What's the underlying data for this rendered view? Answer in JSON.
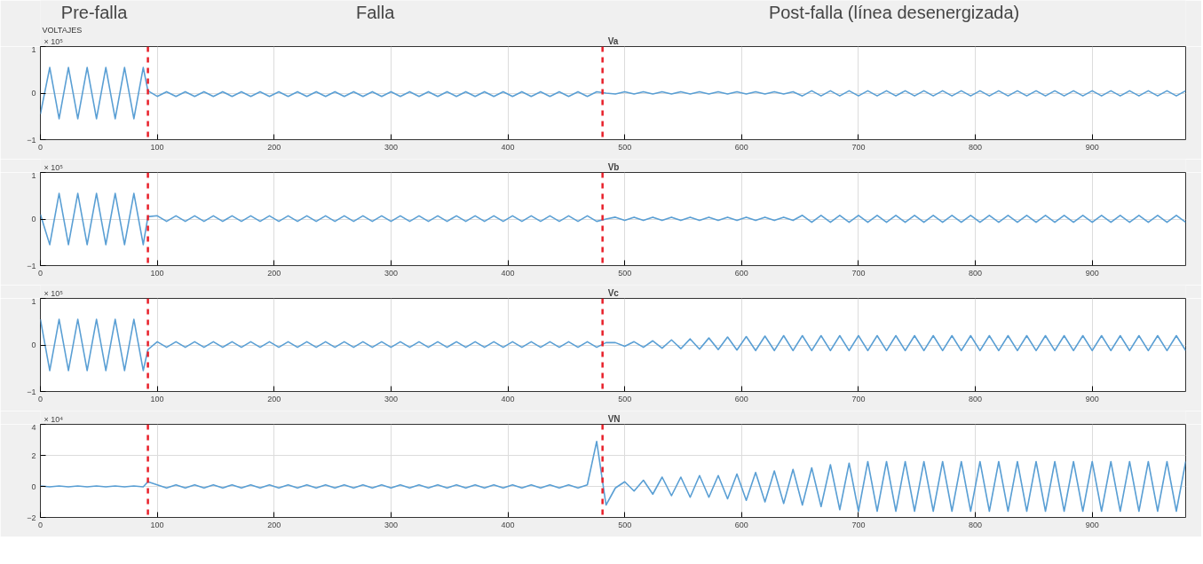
{
  "chart_data": [
    {
      "type": "line",
      "title": "Va",
      "ylabel": "× 10⁵",
      "annotations": [
        "VOLTAJES",
        "Pre-falla",
        "Falla",
        "Post-falla (línea desenergizada)"
      ],
      "x": [
        0,
        8,
        16,
        24,
        32,
        40,
        48,
        56,
        64,
        72,
        80,
        88,
        92,
        100,
        108,
        116,
        124,
        132,
        140,
        148,
        156,
        164,
        172,
        180,
        188,
        196,
        204,
        212,
        220,
        228,
        236,
        244,
        252,
        260,
        268,
        276,
        284,
        292,
        300,
        308,
        316,
        324,
        332,
        340,
        348,
        356,
        364,
        372,
        380,
        388,
        396,
        404,
        412,
        420,
        428,
        436,
        444,
        452,
        460,
        468,
        476,
        484,
        492,
        500,
        508,
        516,
        524,
        532,
        540,
        548,
        556,
        564,
        572,
        580,
        588,
        596,
        604,
        612,
        620,
        628,
        636,
        644,
        652,
        660,
        668,
        676,
        684,
        692,
        700,
        708,
        716,
        724,
        732,
        740,
        748,
        756,
        764,
        772,
        780,
        788,
        796,
        804,
        812,
        820,
        828,
        836,
        844,
        852,
        860,
        868,
        876,
        884,
        892,
        900,
        908,
        916,
        924,
        932,
        940,
        948,
        956,
        964,
        972,
        980
      ],
      "series": [
        {
          "color": "#5a9fd4",
          "values": [
            -0.45,
            0.55,
            -0.55,
            0.55,
            -0.55,
            0.55,
            -0.55,
            0.55,
            -0.55,
            0.55,
            -0.55,
            0.55,
            0.05,
            -0.07,
            0.03,
            -0.07,
            0.03,
            -0.07,
            0.03,
            -0.07,
            0.03,
            -0.07,
            0.03,
            -0.07,
            0.03,
            -0.07,
            0.03,
            -0.07,
            0.03,
            -0.07,
            0.03,
            -0.07,
            0.03,
            -0.07,
            0.03,
            -0.07,
            0.03,
            -0.07,
            0.03,
            -0.07,
            0.03,
            -0.07,
            0.03,
            -0.07,
            0.03,
            -0.07,
            0.03,
            -0.07,
            0.03,
            -0.07,
            0.03,
            -0.07,
            0.03,
            -0.07,
            0.03,
            -0.07,
            0.03,
            -0.07,
            0.03,
            -0.07,
            0.03,
            0.0,
            -0.02,
            0.03,
            -0.02,
            0.03,
            -0.02,
            0.03,
            -0.02,
            0.03,
            -0.02,
            0.03,
            -0.02,
            0.03,
            -0.02,
            0.03,
            -0.02,
            0.03,
            -0.02,
            0.03,
            -0.02,
            0.03,
            -0.06,
            0.05,
            -0.06,
            0.05,
            -0.06,
            0.05,
            -0.06,
            0.05,
            -0.06,
            0.05,
            -0.06,
            0.05,
            -0.06,
            0.05,
            -0.06,
            0.05,
            -0.06,
            0.05,
            -0.06,
            0.05,
            -0.06,
            0.05,
            -0.06,
            0.05,
            -0.06,
            0.05,
            -0.06,
            0.05,
            -0.06,
            0.05,
            -0.06,
            0.05,
            -0.06,
            0.05,
            -0.06,
            0.05,
            -0.06,
            0.05,
            -0.06,
            0.05,
            -0.06,
            0.05
          ]
        }
      ],
      "xlim": [
        0,
        980
      ],
      "ylim": [
        -1,
        1
      ],
      "xticks": [
        0,
        100,
        200,
        300,
        400,
        500,
        600,
        700,
        800,
        900
      ],
      "yticks": [
        -1,
        0,
        1
      ],
      "grid": true,
      "ref_lines": [
        {
          "axis": "x",
          "value": 92,
          "color": "#e8202a",
          "line_style": "dashed"
        },
        {
          "axis": "x",
          "value": 481,
          "color": "#e8202a",
          "line_style": "dashed"
        }
      ]
    },
    {
      "type": "line",
      "title": "Vb",
      "ylabel": "× 10⁵",
      "x": [
        0,
        8,
        16,
        24,
        32,
        40,
        48,
        56,
        64,
        72,
        80,
        88,
        92,
        100,
        108,
        116,
        124,
        132,
        140,
        148,
        156,
        164,
        172,
        180,
        188,
        196,
        204,
        212,
        220,
        228,
        236,
        244,
        252,
        260,
        268,
        276,
        284,
        292,
        300,
        308,
        316,
        324,
        332,
        340,
        348,
        356,
        364,
        372,
        380,
        388,
        396,
        404,
        412,
        420,
        428,
        436,
        444,
        452,
        460,
        468,
        476,
        484,
        492,
        500,
        508,
        516,
        524,
        532,
        540,
        548,
        556,
        564,
        572,
        580,
        588,
        596,
        604,
        612,
        620,
        628,
        636,
        644,
        652,
        660,
        668,
        676,
        684,
        692,
        700,
        708,
        716,
        724,
        732,
        740,
        748,
        756,
        764,
        772,
        780,
        788,
        796,
        804,
        812,
        820,
        828,
        836,
        844,
        852,
        860,
        868,
        876,
        884,
        892,
        900,
        908,
        916,
        924,
        932,
        940,
        948,
        956,
        964,
        972,
        980
      ],
      "series": [
        {
          "color": "#5a9fd4",
          "values": [
            0.1,
            -0.55,
            0.55,
            -0.55,
            0.55,
            -0.55,
            0.55,
            -0.55,
            0.55,
            -0.55,
            0.55,
            -0.55,
            0.05,
            0.07,
            -0.05,
            0.07,
            -0.05,
            0.07,
            -0.05,
            0.07,
            -0.05,
            0.07,
            -0.05,
            0.07,
            -0.05,
            0.07,
            -0.05,
            0.07,
            -0.05,
            0.07,
            -0.05,
            0.07,
            -0.05,
            0.07,
            -0.05,
            0.07,
            -0.05,
            0.07,
            -0.05,
            0.07,
            -0.05,
            0.07,
            -0.05,
            0.07,
            -0.05,
            0.07,
            -0.05,
            0.07,
            -0.05,
            0.07,
            -0.05,
            0.07,
            -0.05,
            0.07,
            -0.05,
            0.07,
            -0.05,
            0.07,
            -0.05,
            0.07,
            -0.05,
            0.0,
            0.04,
            -0.03,
            0.04,
            -0.03,
            0.04,
            -0.03,
            0.04,
            -0.03,
            0.04,
            -0.03,
            0.04,
            -0.03,
            0.04,
            -0.03,
            0.04,
            -0.03,
            0.04,
            -0.03,
            0.04,
            -0.03,
            0.08,
            -0.07,
            0.08,
            -0.07,
            0.08,
            -0.07,
            0.08,
            -0.07,
            0.08,
            -0.07,
            0.08,
            -0.07,
            0.08,
            -0.07,
            0.08,
            -0.07,
            0.08,
            -0.07,
            0.08,
            -0.07,
            0.08,
            -0.07,
            0.08,
            -0.07,
            0.08,
            -0.07,
            0.08,
            -0.07,
            0.08,
            -0.07,
            0.08,
            -0.07,
            0.08,
            -0.07,
            0.08,
            -0.07,
            0.08,
            -0.07,
            0.08,
            -0.07,
            0.08,
            -0.07
          ]
        }
      ],
      "xlim": [
        0,
        980
      ],
      "ylim": [
        -1,
        1
      ],
      "xticks": [
        0,
        100,
        200,
        300,
        400,
        500,
        600,
        700,
        800,
        900
      ],
      "yticks": [
        -1,
        0,
        1
      ],
      "grid": true,
      "ref_lines": [
        {
          "axis": "x",
          "value": 92,
          "color": "#e8202a",
          "line_style": "dashed"
        },
        {
          "axis": "x",
          "value": 481,
          "color": "#e8202a",
          "line_style": "dashed"
        }
      ]
    },
    {
      "type": "line",
      "title": "Vc",
      "ylabel": "× 10⁵",
      "x": [
        0,
        8,
        16,
        24,
        32,
        40,
        48,
        56,
        64,
        72,
        80,
        88,
        92,
        100,
        108,
        116,
        124,
        132,
        140,
        148,
        156,
        164,
        172,
        180,
        188,
        196,
        204,
        212,
        220,
        228,
        236,
        244,
        252,
        260,
        268,
        276,
        284,
        292,
        300,
        308,
        316,
        324,
        332,
        340,
        348,
        356,
        364,
        372,
        380,
        388,
        396,
        404,
        412,
        420,
        428,
        436,
        444,
        452,
        460,
        468,
        476,
        484,
        492,
        500,
        508,
        516,
        524,
        532,
        540,
        548,
        556,
        564,
        572,
        580,
        588,
        596,
        604,
        612,
        620,
        628,
        636,
        644,
        652,
        660,
        668,
        676,
        684,
        692,
        700,
        708,
        716,
        724,
        732,
        740,
        748,
        756,
        764,
        772,
        780,
        788,
        796,
        804,
        812,
        820,
        828,
        836,
        844,
        852,
        860,
        868,
        876,
        884,
        892,
        900,
        908,
        916,
        924,
        932,
        940,
        948,
        956,
        964,
        972,
        980
      ],
      "series": [
        {
          "color": "#5a9fd4",
          "values": [
            0.55,
            -0.55,
            0.55,
            -0.55,
            0.55,
            -0.55,
            0.55,
            -0.55,
            0.55,
            -0.55,
            0.55,
            -0.55,
            -0.1,
            0.07,
            -0.05,
            0.07,
            -0.05,
            0.07,
            -0.05,
            0.07,
            -0.05,
            0.07,
            -0.05,
            0.07,
            -0.05,
            0.07,
            -0.05,
            0.07,
            -0.05,
            0.07,
            -0.05,
            0.07,
            -0.05,
            0.07,
            -0.05,
            0.07,
            -0.05,
            0.07,
            -0.05,
            0.07,
            -0.05,
            0.07,
            -0.05,
            0.07,
            -0.05,
            0.07,
            -0.05,
            0.07,
            -0.05,
            0.07,
            -0.05,
            0.07,
            -0.05,
            0.07,
            -0.05,
            0.07,
            -0.05,
            0.07,
            -0.05,
            0.07,
            -0.05,
            0.05,
            0.05,
            -0.03,
            0.07,
            -0.05,
            0.09,
            -0.07,
            0.11,
            -0.08,
            0.13,
            -0.09,
            0.15,
            -0.1,
            0.17,
            -0.11,
            0.18,
            -0.12,
            0.19,
            -0.12,
            0.2,
            -0.12,
            0.2,
            -0.12,
            0.2,
            -0.12,
            0.2,
            -0.12,
            0.2,
            -0.12,
            0.2,
            -0.12,
            0.2,
            -0.12,
            0.2,
            -0.12,
            0.2,
            -0.12,
            0.2,
            -0.12,
            0.2,
            -0.12,
            0.2,
            -0.12,
            0.2,
            -0.12,
            0.2,
            -0.12,
            0.2,
            -0.12,
            0.2,
            -0.12,
            0.2,
            -0.12,
            0.2,
            -0.12,
            0.2,
            -0.12,
            0.2,
            -0.12,
            0.2,
            -0.12,
            0.2,
            -0.12
          ]
        }
      ],
      "xlim": [
        0,
        980
      ],
      "ylim": [
        -1,
        1
      ],
      "xticks": [
        0,
        100,
        200,
        300,
        400,
        500,
        600,
        700,
        800,
        900
      ],
      "yticks": [
        -1,
        0,
        1
      ],
      "grid": true,
      "ref_lines": [
        {
          "axis": "x",
          "value": 92,
          "color": "#e8202a",
          "line_style": "dashed"
        },
        {
          "axis": "x",
          "value": 481,
          "color": "#e8202a",
          "line_style": "dashed"
        }
      ]
    },
    {
      "type": "line",
      "title": "VN",
      "ylabel": "× 10⁴",
      "x": [
        0,
        8,
        16,
        24,
        32,
        40,
        48,
        56,
        64,
        72,
        80,
        88,
        92,
        100,
        108,
        116,
        124,
        132,
        140,
        148,
        156,
        164,
        172,
        180,
        188,
        196,
        204,
        212,
        220,
        228,
        236,
        244,
        252,
        260,
        268,
        276,
        284,
        292,
        300,
        308,
        316,
        324,
        332,
        340,
        348,
        356,
        364,
        372,
        380,
        388,
        396,
        404,
        412,
        420,
        428,
        436,
        444,
        452,
        460,
        468,
        476,
        484,
        492,
        500,
        508,
        516,
        524,
        532,
        540,
        548,
        556,
        564,
        572,
        580,
        588,
        596,
        604,
        612,
        620,
        628,
        636,
        644,
        652,
        660,
        668,
        676,
        684,
        692,
        700,
        708,
        716,
        724,
        732,
        740,
        748,
        756,
        764,
        772,
        780,
        788,
        796,
        804,
        812,
        820,
        828,
        836,
        844,
        852,
        860,
        868,
        876,
        884,
        892,
        900,
        908,
        916,
        924,
        932,
        940,
        948,
        956,
        964,
        972,
        980
      ],
      "series": [
        {
          "color": "#5a9fd4",
          "values": [
            0.03,
            -0.03,
            0.03,
            -0.03,
            0.03,
            -0.03,
            0.03,
            -0.03,
            0.03,
            -0.03,
            0.03,
            -0.03,
            0.3,
            0.1,
            -0.1,
            0.1,
            -0.1,
            0.1,
            -0.1,
            0.1,
            -0.1,
            0.1,
            -0.1,
            0.1,
            -0.1,
            0.1,
            -0.1,
            0.1,
            -0.1,
            0.1,
            -0.1,
            0.1,
            -0.1,
            0.1,
            -0.1,
            0.1,
            -0.1,
            0.1,
            -0.1,
            0.1,
            -0.1,
            0.1,
            -0.1,
            0.1,
            -0.1,
            0.1,
            -0.1,
            0.1,
            -0.1,
            0.1,
            -0.1,
            0.1,
            -0.1,
            0.1,
            -0.1,
            0.1,
            -0.1,
            0.1,
            -0.1,
            0.1,
            2.9,
            -1.2,
            -0.1,
            0.3,
            -0.3,
            0.4,
            -0.5,
            0.6,
            -0.6,
            0.6,
            -0.7,
            0.7,
            -0.7,
            0.7,
            -0.8,
            0.8,
            -0.9,
            0.9,
            -1.0,
            1.0,
            -1.1,
            1.1,
            -1.2,
            1.2,
            -1.3,
            1.4,
            -1.5,
            1.5,
            -1.6,
            1.6,
            -1.6,
            1.6,
            -1.6,
            1.6,
            -1.6,
            1.6,
            -1.6,
            1.6,
            -1.6,
            1.6,
            -1.6,
            1.6,
            -1.6,
            1.6,
            -1.6,
            1.6,
            -1.6,
            1.6,
            -1.6,
            1.6,
            -1.6,
            1.6,
            -1.6,
            1.6,
            -1.6,
            1.6,
            -1.6,
            1.6,
            -1.6,
            1.6,
            -1.6,
            1.6,
            -1.6,
            1.6
          ]
        }
      ],
      "xlim": [
        0,
        980
      ],
      "ylim": [
        -2,
        4
      ],
      "xticks": [
        0,
        100,
        200,
        300,
        400,
        500,
        600,
        700,
        800,
        900
      ],
      "yticks": [
        -2,
        0,
        2,
        4
      ],
      "grid": true,
      "ref_lines": [
        {
          "axis": "x",
          "value": 92,
          "color": "#e8202a",
          "line_style": "dashed"
        },
        {
          "axis": "x",
          "value": 481,
          "color": "#e8202a",
          "line_style": "dashed"
        }
      ]
    }
  ]
}
